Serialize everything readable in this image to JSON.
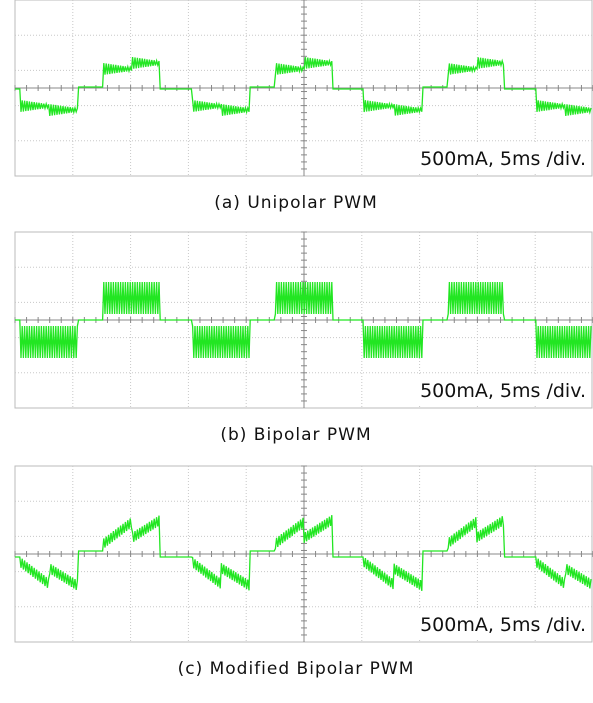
{
  "panels": [
    {
      "annotation": "500mA, 5ms /div.",
      "caption": "(a) Unipolar PWM"
    },
    {
      "annotation": "500mA, 5ms /div.",
      "caption": "(b) Bipolar PWM"
    },
    {
      "annotation": "500mA, 5ms /div.",
      "caption": "(c) Modified Bipolar PWM"
    }
  ]
}
